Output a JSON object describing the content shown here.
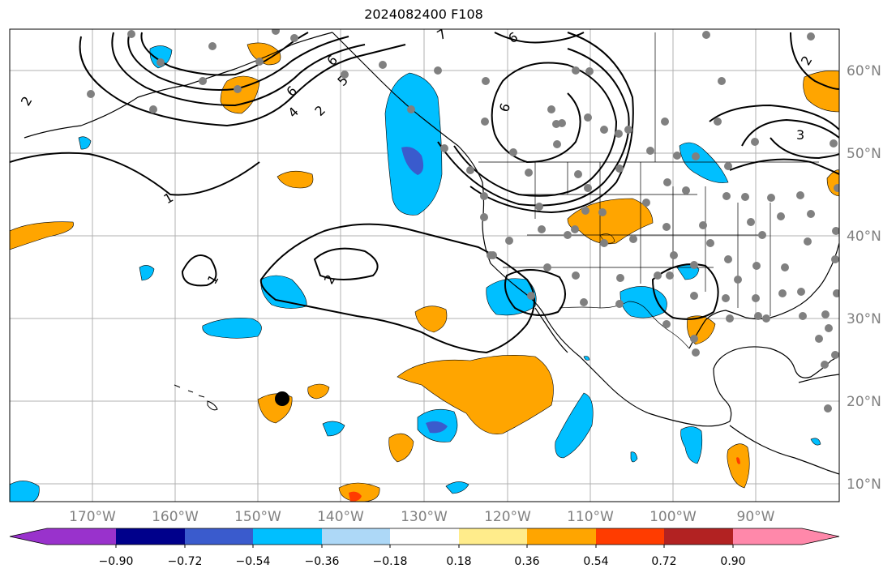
{
  "title": "2024082400 F108",
  "lon_labels": [
    "170°W",
    "160°W",
    "150°W",
    "140°W",
    "130°W",
    "120°W",
    "110°W",
    "100°W",
    "90°W"
  ],
  "lat_labels": [
    "60°N",
    "50°N",
    "40°N",
    "30°N",
    "20°N",
    "10°N"
  ],
  "colorbar": {
    "colors": [
      "#9932cc",
      "#00008b",
      "#3a5bcd",
      "#00bfff",
      "#add8f7",
      "#ffffff",
      "#ffec8b",
      "#ffa500",
      "#ff3c00",
      "#b22222",
      "#ff88aa"
    ],
    "tick_labels": [
      "−0.90",
      "−0.72",
      "−0.54",
      "−0.36",
      "−0.18",
      "0.18",
      "0.36",
      "0.54",
      "0.72",
      "0.90"
    ]
  },
  "contour_labels": [
    "1",
    "1",
    "2",
    "2",
    "2",
    "3",
    "4",
    "5",
    "6",
    "6",
    "6",
    "6",
    "7",
    "2"
  ],
  "colors": {
    "positive": "#ffa500",
    "negative": "#00bfff",
    "strong_negative": "#3a5bcd",
    "station": "#808080"
  }
}
